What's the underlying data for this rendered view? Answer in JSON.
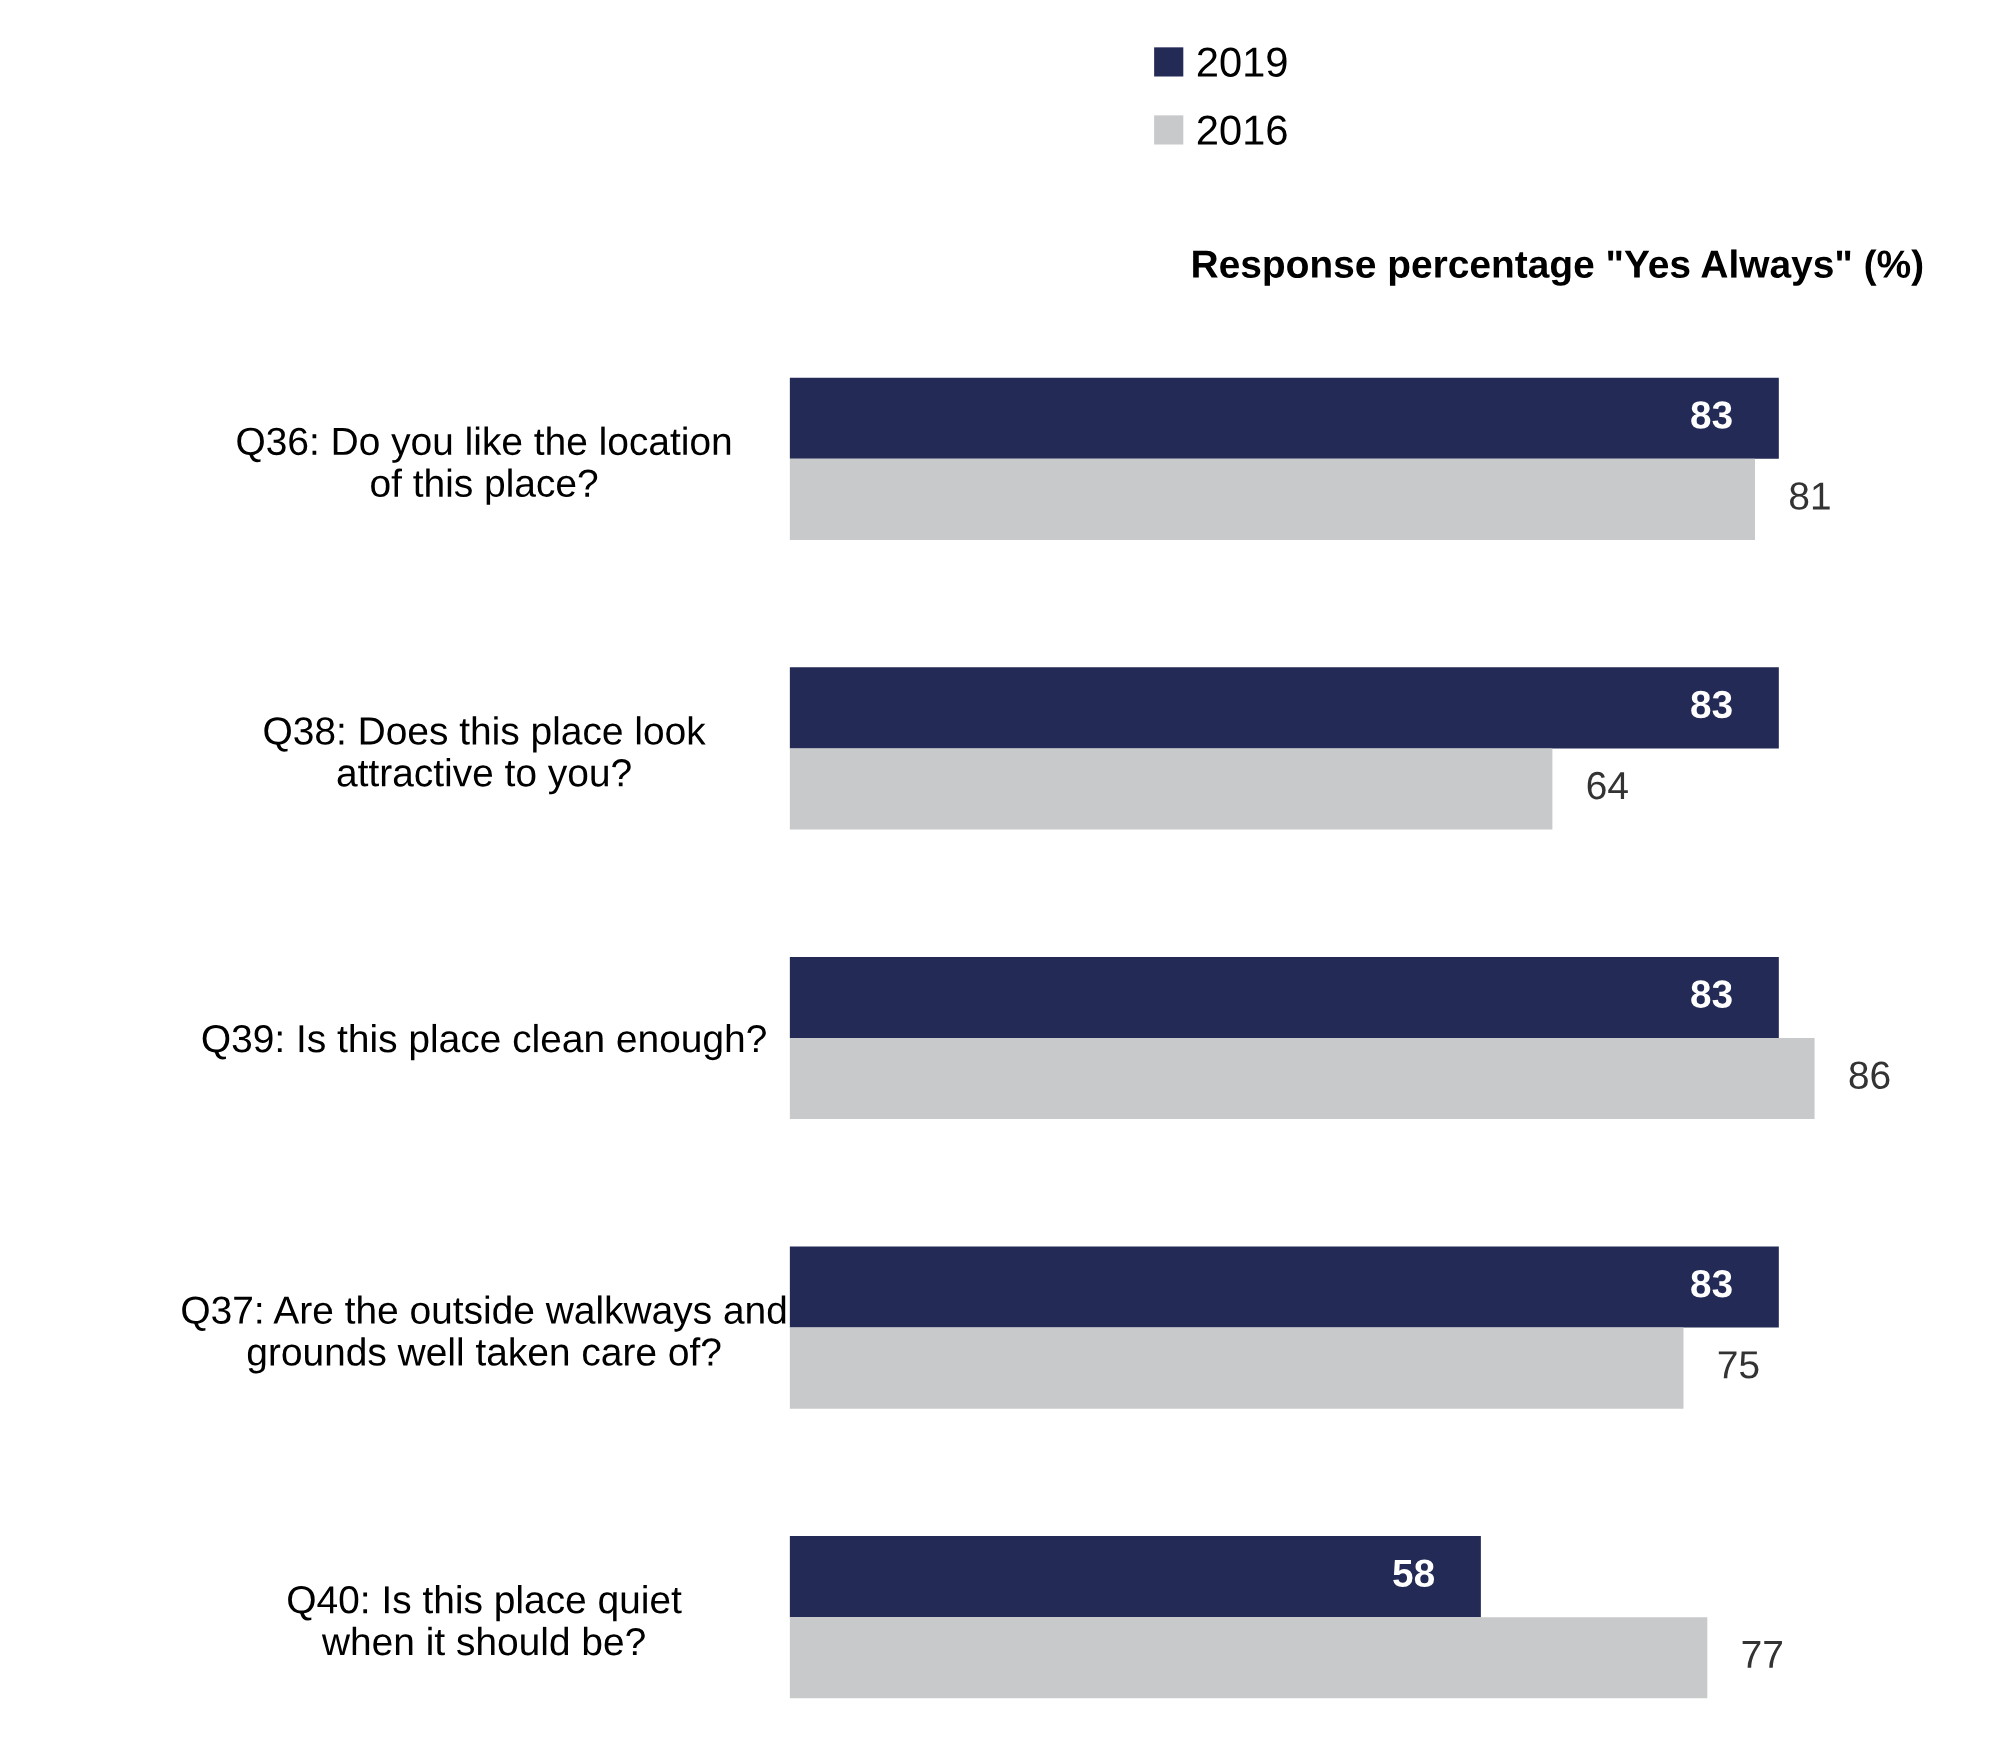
{
  "chart_data": {
    "type": "bar",
    "orientation": "horizontal",
    "xlabel": "Response percentage \"Yes Always\" (%)",
    "categories": [
      "Q36: Do you like the location\nof this place?",
      "Q38: Does this place look\nattractive to you?",
      "Q39: Is this place clean enough?",
      "Q37: Are the outside walkways and\ngrounds well taken care of?",
      "Q40: Is this place quiet\nwhen it should be?"
    ],
    "series": [
      {
        "name": "2019",
        "color": "#232a55",
        "values": [
          83,
          83,
          83,
          83,
          58
        ]
      },
      {
        "name": "2016",
        "color": "#c8c9cb",
        "values": [
          81,
          64,
          86,
          75,
          77
        ]
      }
    ],
    "data_labels": true,
    "legend": "top",
    "grid": false
  }
}
